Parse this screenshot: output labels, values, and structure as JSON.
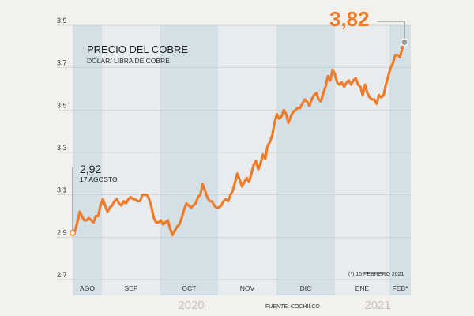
{
  "colors": {
    "background": "#f3f1ed",
    "band_blue": "#d3e0e6",
    "band_light": "#e9ecee",
    "line": "#f07c2a",
    "grid": "#c8c8c8",
    "end_marker": "#9a9a9a"
  },
  "chart_data": {
    "type": "line",
    "title": "PRECIO DEL COBRE",
    "subtitle": "DÓLAR/ LIBRA DE COBRE",
    "ylim": [
      2.7,
      3.9
    ],
    "yticks": [
      "2,7",
      "2,9",
      "3,1",
      "3,3",
      "3,5",
      "3,7",
      "3,9"
    ],
    "grid": true,
    "months": [
      {
        "label": "AGO",
        "shade": "blue"
      },
      {
        "label": "SEP",
        "shade": "light"
      },
      {
        "label": "OCT",
        "shade": "blue"
      },
      {
        "label": "NOV",
        "shade": "light"
      },
      {
        "label": "DIC",
        "shade": "blue"
      },
      {
        "label": "ENE",
        "shade": "light"
      },
      {
        "label": "FEB*",
        "shade": "blue"
      }
    ],
    "years": [
      "2020",
      "2021"
    ],
    "start": {
      "value_label": "2,92",
      "date_label": "17 AGOSTO",
      "value": 2.92
    },
    "end": {
      "value_label": "3,82",
      "value": 3.82
    },
    "note": "(*) 15 FEBRERO 2021",
    "source": "FUENTE: COCHILCO",
    "series": [
      {
        "values": [
          2.92,
          2.93,
          2.97,
          3.02,
          3.0,
          2.98,
          2.98,
          2.99,
          2.98,
          2.97,
          3.0,
          3.0,
          3.05,
          3.08,
          3.05,
          3.02,
          3.04,
          3.05,
          3.07,
          3.08,
          3.06,
          3.05,
          3.07,
          3.06,
          3.08,
          3.09,
          3.08,
          3.08,
          3.07,
          3.07,
          3.1,
          3.1,
          3.1,
          3.08,
          3.04,
          2.99,
          2.97,
          2.97,
          2.98,
          2.96,
          2.97,
          2.98,
          2.94,
          2.91,
          2.93,
          2.95,
          2.96,
          2.99,
          3.03,
          3.06,
          3.05,
          3.04,
          3.05,
          3.06,
          3.09,
          3.1,
          3.15,
          3.12,
          3.09,
          3.07,
          3.07,
          3.05,
          3.04,
          3.04,
          3.05,
          3.07,
          3.08,
          3.07,
          3.1,
          3.12,
          3.16,
          3.2,
          3.17,
          3.14,
          3.16,
          3.18,
          3.16,
          3.2,
          3.24,
          3.26,
          3.22,
          3.25,
          3.29,
          3.27,
          3.33,
          3.35,
          3.38,
          3.44,
          3.48,
          3.46,
          3.47,
          3.5,
          3.48,
          3.44,
          3.47,
          3.49,
          3.5,
          3.51,
          3.51,
          3.53,
          3.55,
          3.54,
          3.52,
          3.55,
          3.57,
          3.58,
          3.55,
          3.54,
          3.58,
          3.61,
          3.66,
          3.64,
          3.69,
          3.67,
          3.63,
          3.62,
          3.63,
          3.61,
          3.63,
          3.64,
          3.62,
          3.64,
          3.65,
          3.62,
          3.61,
          3.57,
          3.62,
          3.58,
          3.56,
          3.55,
          3.55,
          3.53,
          3.57,
          3.56,
          3.57,
          3.62,
          3.66,
          3.7,
          3.72,
          3.76,
          3.76,
          3.75,
          3.79,
          3.82
        ]
      }
    ]
  }
}
